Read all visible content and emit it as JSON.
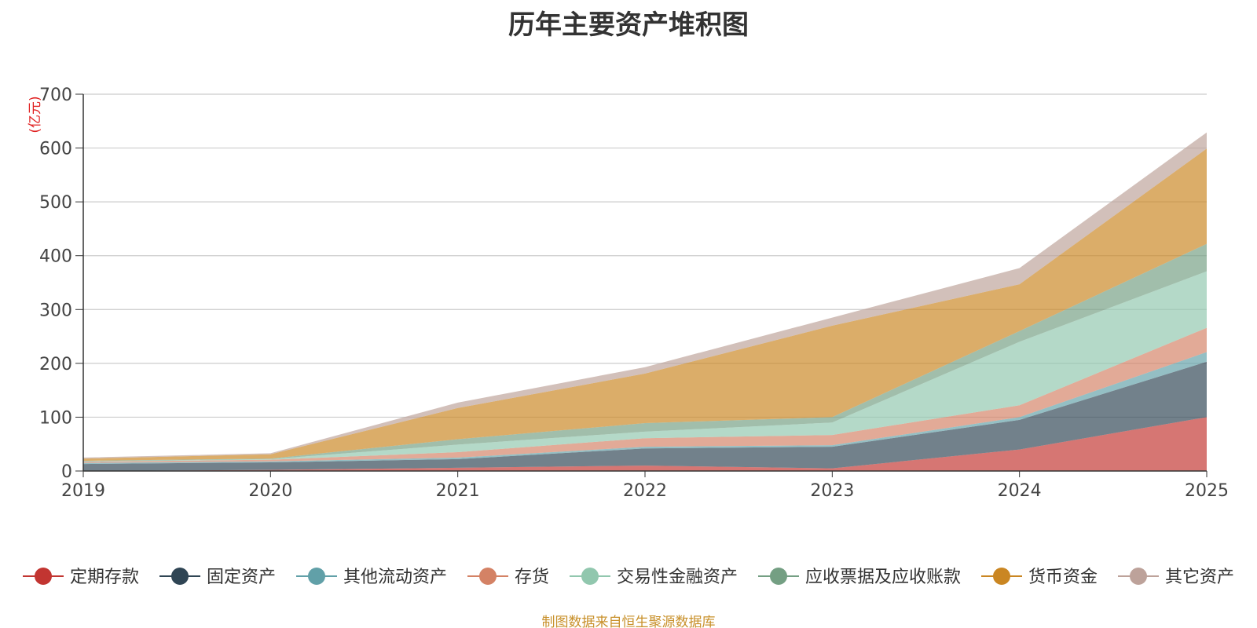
{
  "chart_data": {
    "type": "area",
    "stacked": true,
    "title": "历年主要资产堆积图",
    "unit_label": "(亿元)",
    "categories": [
      "2019",
      "2020",
      "2021",
      "2022",
      "2023",
      "2024",
      "2025"
    ],
    "ylim": [
      0,
      700
    ],
    "y_ticks": [
      0,
      100,
      200,
      300,
      400,
      500,
      600,
      700
    ],
    "grid": true,
    "legend_position": "bottom",
    "series": [
      {
        "name": "定期存款",
        "color": "#c23531",
        "values": [
          0,
          2,
          6,
          10,
          5,
          40,
          100
        ]
      },
      {
        "name": "固定资产",
        "color": "#2f4554",
        "values": [
          13,
          14,
          16,
          32,
          40,
          55,
          103
        ]
      },
      {
        "name": "其他流动资产",
        "color": "#61a0a8",
        "values": [
          2,
          2,
          3,
          3,
          3,
          5,
          18
        ]
      },
      {
        "name": "存货",
        "color": "#d48265",
        "values": [
          2,
          3,
          10,
          16,
          19,
          22,
          45
        ]
      },
      {
        "name": "交易性金融资产",
        "color": "#91c7ae",
        "values": [
          1,
          1,
          14,
          12,
          23,
          118,
          105
        ]
      },
      {
        "name": "应收票据及应收账款",
        "color": "#749f83",
        "values": [
          1,
          1,
          10,
          16,
          10,
          20,
          51
        ]
      },
      {
        "name": "货币资金",
        "color": "#ca8622",
        "values": [
          4,
          8,
          58,
          92,
          170,
          87,
          177
        ]
      },
      {
        "name": "其它资产",
        "color": "#bda29a",
        "values": [
          2,
          2,
          10,
          12,
          15,
          30,
          30
        ]
      }
    ]
  },
  "footer": {
    "source_text": "制图数据来自恒生聚源数据库",
    "source_color": "#c8902a"
  },
  "colors": {
    "title": "#333333",
    "axis": "#333333",
    "grid": "#cccccc",
    "tick_text": "#444444",
    "unit_label": "#e02020",
    "legend_text": "#333333"
  }
}
